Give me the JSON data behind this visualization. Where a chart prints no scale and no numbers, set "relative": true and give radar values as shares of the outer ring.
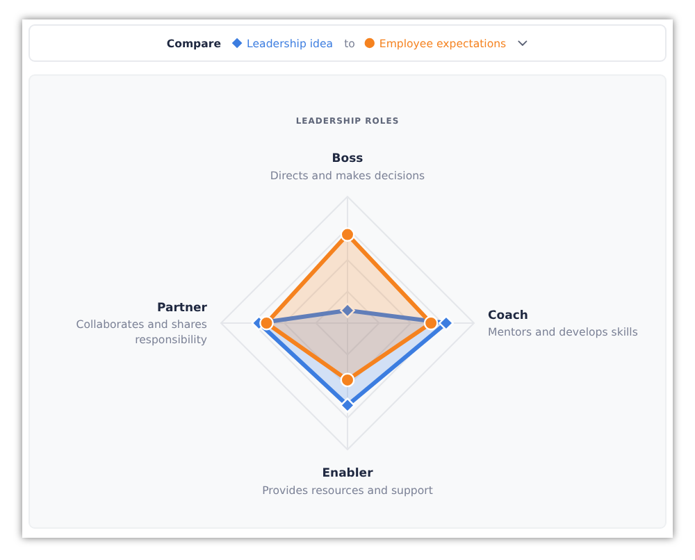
{
  "chart_data": {
    "type": "radar",
    "title": "LEADERSHIP ROLES",
    "legend_title": "Compare",
    "legend": "top",
    "grid": true,
    "relative": true,
    "categories": [
      "Boss",
      "Coach",
      "Enabler",
      "Partner"
    ],
    "series": [
      {
        "name": "Leadership idea",
        "color": "#3c7de0",
        "marker": "diamond",
        "values": [
          0.1,
          0.78,
          0.65,
          0.7
        ]
      },
      {
        "name": "Employee expectations",
        "color": "#f5821f",
        "marker": "circle",
        "values": [
          0.7,
          0.66,
          0.45,
          0.64
        ]
      }
    ],
    "annotations": [
      "to",
      {
        "text": "Directs and makes decisions",
        "x": "Boss"
      },
      {
        "text": "Mentors and develops skills",
        "x": "Coach"
      },
      {
        "text": "Provides resources and support",
        "x": "Enabler"
      },
      {
        "text": "Collaborates and shares responsibility",
        "x": "Partner"
      }
    ]
  }
}
